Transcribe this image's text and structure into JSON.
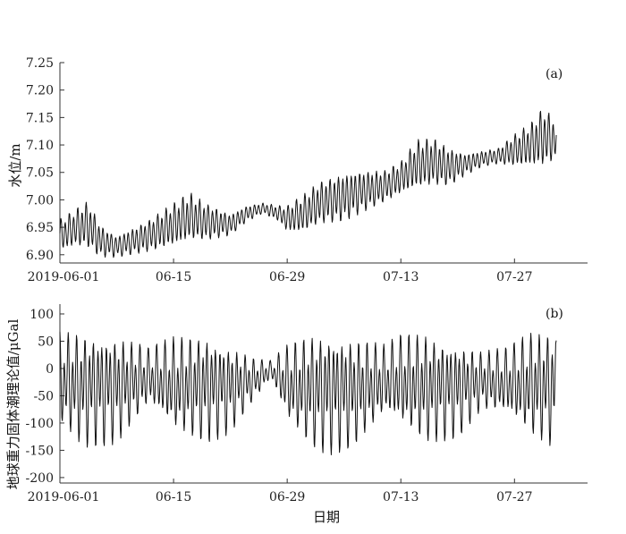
{
  "chart_data": [
    {
      "type": "line",
      "panel_label": "(a)",
      "title": "",
      "xlabel": "",
      "ylabel": "水位/m",
      "x_tick_labels": [
        "2019-06-01",
        "06-15",
        "06-29",
        "07-13",
        "07-27"
      ],
      "x_tick_days": [
        0,
        14,
        28,
        42,
        56
      ],
      "xlim": [
        0,
        65
      ],
      "data_end_day": 61.2,
      "y_tick_labels": [
        "6.90",
        "6.95",
        "7.00",
        "7.05",
        "7.10",
        "7.15",
        "7.20",
        "7.25"
      ],
      "y_ticks": [
        6.9,
        6.95,
        7.0,
        7.05,
        7.1,
        7.15,
        7.2,
        7.25
      ],
      "ylim": [
        6.885,
        7.25
      ],
      "grid": false,
      "legend": "none",
      "line_color": "#111111",
      "series": [
        {
          "x": [
            0,
            2,
            3.5,
            5,
            7,
            9,
            11,
            14,
            16,
            18,
            21,
            23,
            25,
            27,
            28,
            30,
            32,
            35,
            37,
            40,
            42,
            44,
            46,
            48,
            50,
            52,
            54,
            56,
            58,
            59.5,
            61
          ],
          "mean": [
            6.935,
            6.95,
            6.955,
            6.925,
            6.915,
            6.925,
            6.935,
            6.955,
            6.97,
            6.96,
            6.955,
            6.975,
            6.985,
            6.975,
            6.965,
            6.975,
            6.995,
            7.005,
            7.015,
            7.025,
            7.04,
            7.065,
            7.07,
            7.06,
            7.065,
            7.075,
            7.08,
            7.09,
            7.1,
            7.115,
            7.11
          ],
          "amplitude": [
            0.03,
            0.035,
            0.045,
            0.03,
            0.02,
            0.025,
            0.03,
            0.04,
            0.045,
            0.035,
            0.02,
            0.015,
            0.01,
            0.015,
            0.025,
            0.035,
            0.04,
            0.045,
            0.04,
            0.03,
            0.03,
            0.045,
            0.045,
            0.035,
            0.02,
            0.015,
            0.015,
            0.03,
            0.04,
            0.055,
            0.04
          ]
        }
      ]
    },
    {
      "type": "line",
      "panel_label": "(b)",
      "title": "",
      "xlabel": "日期",
      "ylabel": "地球重力固体潮理论值/μGal",
      "x_tick_labels": [
        "2019-06-01",
        "06-15",
        "06-29",
        "07-13",
        "07-27"
      ],
      "x_tick_days": [
        0,
        14,
        28,
        42,
        56
      ],
      "xlim": [
        0,
        65
      ],
      "data_end_day": 61.2,
      "y_tick_labels": [
        "-200",
        "-150",
        "-100",
        "-50",
        "0",
        "50",
        "100"
      ],
      "y_ticks": [
        -200,
        -150,
        -100,
        -50,
        0,
        50,
        100
      ],
      "ylim": [
        -210,
        118
      ],
      "grid": false,
      "legend": "none",
      "line_color": "#111111",
      "series": [
        {
          "x": [
            0,
            3,
            7,
            11,
            14,
            18,
            21,
            24,
            26,
            28,
            31,
            33,
            36,
            40,
            42,
            45,
            49,
            52,
            55,
            58,
            61
          ],
          "max": [
            70,
            75,
            70,
            40,
            60,
            70,
            50,
            20,
            15,
            45,
            70,
            75,
            65,
            45,
            65,
            70,
            55,
            35,
            40,
            70,
            80
          ],
          "min": [
            -110,
            -150,
            -140,
            -70,
            -120,
            -140,
            -120,
            -60,
            -20,
            -100,
            -150,
            -160,
            -150,
            -90,
            -110,
            -140,
            -130,
            -80,
            -90,
            -130,
            -150
          ]
        }
      ]
    }
  ]
}
